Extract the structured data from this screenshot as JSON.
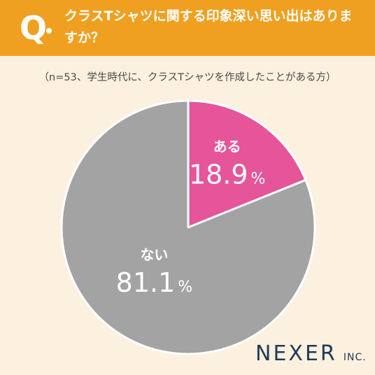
{
  "header": {
    "q_letter": "Q",
    "question": "クラスTシャツに関する印象深い思い出はありますか？"
  },
  "note": "（n=53、学生時代に、クラスTシャツを作成したことがある方）",
  "chart_data": {
    "type": "pie",
    "title": "クラスTシャツに関する印象深い思い出はありますか？",
    "slices": [
      {
        "label": "ある",
        "value": 18.9,
        "value_text": "18.9",
        "unit": "%",
        "color": "#e6549a"
      },
      {
        "label": "ない",
        "value": 81.1,
        "value_text": "81.1",
        "unit": "%",
        "color": "#a3a3a3"
      }
    ],
    "start": "top, clockwise"
  },
  "logo": {
    "main": "NEXER",
    "sub": "INC."
  },
  "colors": {
    "header": "#f0a020",
    "background": "#fcf1df",
    "logo": "#1f3a5a"
  }
}
